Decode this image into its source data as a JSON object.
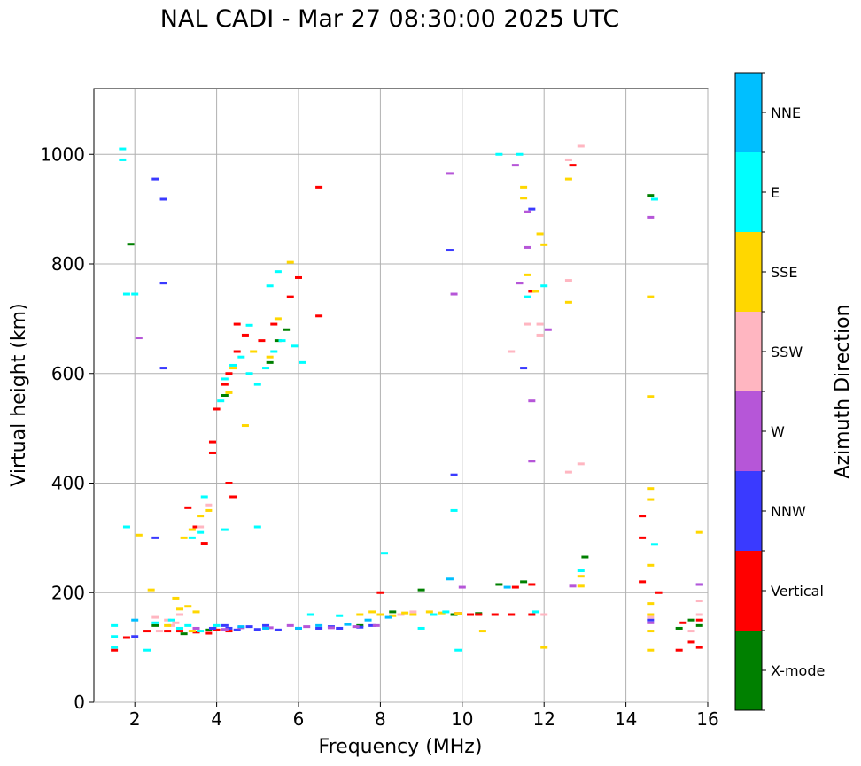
{
  "chart_data": {
    "type": "scatter",
    "title": "NAL CADI - Mar 27 08:30:00 2025 UTC",
    "xlabel": "Frequency (MHz)",
    "ylabel": "Virtual height (km)",
    "xlim": [
      1,
      16
    ],
    "ylim": [
      0,
      1120
    ],
    "xticks": [
      2,
      4,
      6,
      8,
      10,
      12,
      14,
      16
    ],
    "yticks": [
      0,
      200,
      400,
      600,
      800,
      1000
    ],
    "grid": true,
    "colorbar": {
      "label": "Azimuth Direction",
      "categories": [
        {
          "name": "X-mode",
          "color": "#008000"
        },
        {
          "name": "Vertical",
          "color": "#ff0000"
        },
        {
          "name": "NNW",
          "color": "#3a3aff"
        },
        {
          "name": "W",
          "color": "#b656d8"
        },
        {
          "name": "SSW",
          "color": "#ffb6c1"
        },
        {
          "name": "SSE",
          "color": "#ffd700"
        },
        {
          "name": "E",
          "color": "#00ffff"
        },
        {
          "name": "NNE",
          "color": "#00bfff"
        }
      ]
    },
    "series": [
      {
        "name": "X-mode",
        "points": [
          [
            1.9,
            836
          ],
          [
            5.3,
            620
          ],
          [
            5.5,
            660
          ],
          [
            5.7,
            680
          ],
          [
            4.2,
            560
          ],
          [
            9.0,
            205
          ],
          [
            9.8,
            160
          ],
          [
            10.4,
            162
          ],
          [
            10.9,
            215
          ],
          [
            11.5,
            220
          ],
          [
            13.0,
            265
          ],
          [
            14.6,
            925
          ],
          [
            15.3,
            135
          ],
          [
            15.6,
            150
          ],
          [
            15.8,
            140
          ],
          [
            3.2,
            125
          ],
          [
            3.8,
            132
          ],
          [
            2.5,
            140
          ],
          [
            7.5,
            140
          ],
          [
            8.3,
            165
          ]
        ]
      },
      {
        "name": "Vertical",
        "points": [
          [
            1.5,
            95
          ],
          [
            1.8,
            118
          ],
          [
            2.3,
            130
          ],
          [
            2.8,
            130
          ],
          [
            3.1,
            130
          ],
          [
            3.5,
            128
          ],
          [
            3.8,
            126
          ],
          [
            4.0,
            132
          ],
          [
            4.3,
            130
          ],
          [
            3.7,
            290
          ],
          [
            3.5,
            320
          ],
          [
            3.3,
            355
          ],
          [
            3.9,
            455
          ],
          [
            3.9,
            475
          ],
          [
            4.0,
            535
          ],
          [
            4.2,
            580
          ],
          [
            4.3,
            600
          ],
          [
            4.5,
            640
          ],
          [
            4.7,
            670
          ],
          [
            4.5,
            690
          ],
          [
            4.3,
            400
          ],
          [
            4.4,
            375
          ],
          [
            5.1,
            660
          ],
          [
            5.4,
            690
          ],
          [
            5.8,
            740
          ],
          [
            6.0,
            775
          ],
          [
            6.5,
            940
          ],
          [
            6.5,
            705
          ],
          [
            8.0,
            200
          ],
          [
            10.4,
            160
          ],
          [
            10.8,
            160
          ],
          [
            11.2,
            160
          ],
          [
            11.7,
            160
          ],
          [
            11.3,
            210
          ],
          [
            11.7,
            215
          ],
          [
            12.7,
            980
          ],
          [
            14.4,
            300
          ],
          [
            14.4,
            340
          ],
          [
            14.4,
            220
          ],
          [
            14.8,
            200
          ],
          [
            15.3,
            95
          ],
          [
            15.6,
            110
          ],
          [
            15.8,
            100
          ],
          [
            15.8,
            150
          ],
          [
            15.4,
            145
          ],
          [
            11.7,
            750
          ],
          [
            10.2,
            160
          ],
          [
            9.9,
            162
          ]
        ]
      },
      {
        "name": "NNW",
        "points": [
          [
            2.0,
            120
          ],
          [
            4.3,
            135
          ],
          [
            4.5,
            132
          ],
          [
            5.0,
            133
          ],
          [
            5.5,
            132
          ],
          [
            6.0,
            135
          ],
          [
            6.5,
            135
          ],
          [
            7.0,
            135
          ],
          [
            7.5,
            137
          ],
          [
            5.2,
            140
          ],
          [
            4.8,
            138
          ],
          [
            4.2,
            140
          ],
          [
            3.9,
            135
          ],
          [
            2.5,
            955
          ],
          [
            2.7,
            918
          ],
          [
            2.7,
            765
          ],
          [
            2.7,
            610
          ],
          [
            2.5,
            300
          ],
          [
            9.7,
            825
          ],
          [
            9.8,
            415
          ],
          [
            11.5,
            610
          ],
          [
            11.7,
            900
          ],
          [
            14.6,
            150
          ],
          [
            15.8,
            215
          ],
          [
            6.8,
            138
          ],
          [
            7.8,
            140
          ]
        ]
      },
      {
        "name": "W",
        "points": [
          [
            2.1,
            665
          ],
          [
            3.5,
            135
          ],
          [
            4.2,
            133
          ],
          [
            4.6,
            136
          ],
          [
            5.3,
            136
          ],
          [
            6.2,
            138
          ],
          [
            6.8,
            136
          ],
          [
            7.4,
            138
          ],
          [
            7.9,
            140
          ],
          [
            9.7,
            965
          ],
          [
            9.8,
            745
          ],
          [
            11.3,
            980
          ],
          [
            11.4,
            765
          ],
          [
            11.6,
            895
          ],
          [
            11.6,
            830
          ],
          [
            11.7,
            550
          ],
          [
            11.7,
            440
          ],
          [
            12.1,
            680
          ],
          [
            14.6,
            885
          ],
          [
            14.6,
            145
          ],
          [
            15.8,
            215
          ],
          [
            12.7,
            212
          ],
          [
            5.8,
            140
          ],
          [
            10.0,
            210
          ]
        ]
      },
      {
        "name": "SSW",
        "points": [
          [
            2.5,
            155
          ],
          [
            2.8,
            150
          ],
          [
            3.0,
            145
          ],
          [
            3.1,
            160
          ],
          [
            2.6,
            130
          ],
          [
            2.9,
            140
          ],
          [
            3.6,
            320
          ],
          [
            3.8,
            360
          ],
          [
            11.6,
            690
          ],
          [
            11.9,
            690
          ],
          [
            11.9,
            670
          ],
          [
            11.2,
            640
          ],
          [
            12.6,
            770
          ],
          [
            12.6,
            420
          ],
          [
            12.9,
            435
          ],
          [
            12.6,
            990
          ],
          [
            12.9,
            1015
          ],
          [
            12.0,
            160
          ],
          [
            15.8,
            160
          ],
          [
            15.8,
            185
          ],
          [
            15.6,
            130
          ],
          [
            8.5,
            160
          ],
          [
            8.8,
            165
          ],
          [
            14.6,
            155
          ]
        ]
      },
      {
        "name": "SSE",
        "points": [
          [
            2.4,
            205
          ],
          [
            3.0,
            190
          ],
          [
            3.1,
            170
          ],
          [
            3.3,
            175
          ],
          [
            3.5,
            165
          ],
          [
            2.8,
            140
          ],
          [
            3.4,
            130
          ],
          [
            3.2,
            300
          ],
          [
            3.4,
            315
          ],
          [
            3.6,
            340
          ],
          [
            3.8,
            350
          ],
          [
            4.3,
            565
          ],
          [
            4.7,
            505
          ],
          [
            4.4,
            610
          ],
          [
            4.9,
            640
          ],
          [
            5.3,
            630
          ],
          [
            5.5,
            700
          ],
          [
            5.8,
            803
          ],
          [
            7.5,
            160
          ],
          [
            7.8,
            165
          ],
          [
            8.0,
            160
          ],
          [
            8.3,
            158
          ],
          [
            8.6,
            163
          ],
          [
            8.8,
            160
          ],
          [
            9.2,
            165
          ],
          [
            9.5,
            163
          ],
          [
            9.9,
            162
          ],
          [
            11.5,
            940
          ],
          [
            11.5,
            920
          ],
          [
            11.6,
            780
          ],
          [
            11.8,
            750
          ],
          [
            11.9,
            855
          ],
          [
            12.0,
            835
          ],
          [
            12.0,
            100
          ],
          [
            12.6,
            955
          ],
          [
            12.6,
            730
          ],
          [
            12.9,
            230
          ],
          [
            12.9,
            212
          ],
          [
            14.6,
            740
          ],
          [
            14.6,
            558
          ],
          [
            14.6,
            390
          ],
          [
            14.6,
            370
          ],
          [
            14.6,
            250
          ],
          [
            14.6,
            180
          ],
          [
            14.6,
            160
          ],
          [
            14.6,
            130
          ],
          [
            14.6,
            95
          ],
          [
            15.8,
            310
          ],
          [
            10.5,
            130
          ],
          [
            2.1,
            305
          ]
        ]
      },
      {
        "name": "E",
        "points": [
          [
            1.5,
            140
          ],
          [
            1.5,
            120
          ],
          [
            1.5,
            100
          ],
          [
            1.8,
            745
          ],
          [
            1.7,
            1010
          ],
          [
            1.7,
            990
          ],
          [
            2.0,
            745
          ],
          [
            1.8,
            320
          ],
          [
            2.3,
            95
          ],
          [
            2.5,
            145
          ],
          [
            2.9,
            150
          ],
          [
            3.1,
            135
          ],
          [
            3.3,
            140
          ],
          [
            3.6,
            130
          ],
          [
            4.0,
            140
          ],
          [
            3.4,
            300
          ],
          [
            3.6,
            310
          ],
          [
            3.7,
            375
          ],
          [
            4.1,
            550
          ],
          [
            4.2,
            590
          ],
          [
            4.4,
            615
          ],
          [
            4.6,
            630
          ],
          [
            4.8,
            600
          ],
          [
            5.0,
            580
          ],
          [
            5.2,
            610
          ],
          [
            5.4,
            640
          ],
          [
            5.6,
            660
          ],
          [
            5.9,
            650
          ],
          [
            5.5,
            786
          ],
          [
            5.3,
            760
          ],
          [
            6.1,
            620
          ],
          [
            5.0,
            320
          ],
          [
            4.2,
            315
          ],
          [
            4.8,
            688
          ],
          [
            8.1,
            272
          ],
          [
            9.0,
            135
          ],
          [
            9.3,
            160
          ],
          [
            9.6,
            165
          ],
          [
            9.8,
            350
          ],
          [
            9.9,
            95
          ],
          [
            10.9,
            1000
          ],
          [
            11.4,
            1000
          ],
          [
            11.6,
            740
          ],
          [
            12.0,
            760
          ],
          [
            12.9,
            240
          ],
          [
            14.7,
            918
          ],
          [
            14.7,
            288
          ],
          [
            11.8,
            165
          ],
          [
            6.3,
            160
          ],
          [
            7.0,
            158
          ]
        ]
      },
      {
        "name": "NNE",
        "points": [
          [
            2.0,
            150
          ],
          [
            4.6,
            138
          ],
          [
            5.2,
            135
          ],
          [
            6.0,
            135
          ],
          [
            6.5,
            140
          ],
          [
            7.2,
            142
          ],
          [
            9.7,
            225
          ],
          [
            11.1,
            210
          ],
          [
            7.7,
            150
          ],
          [
            8.2,
            155
          ]
        ]
      }
    ]
  }
}
